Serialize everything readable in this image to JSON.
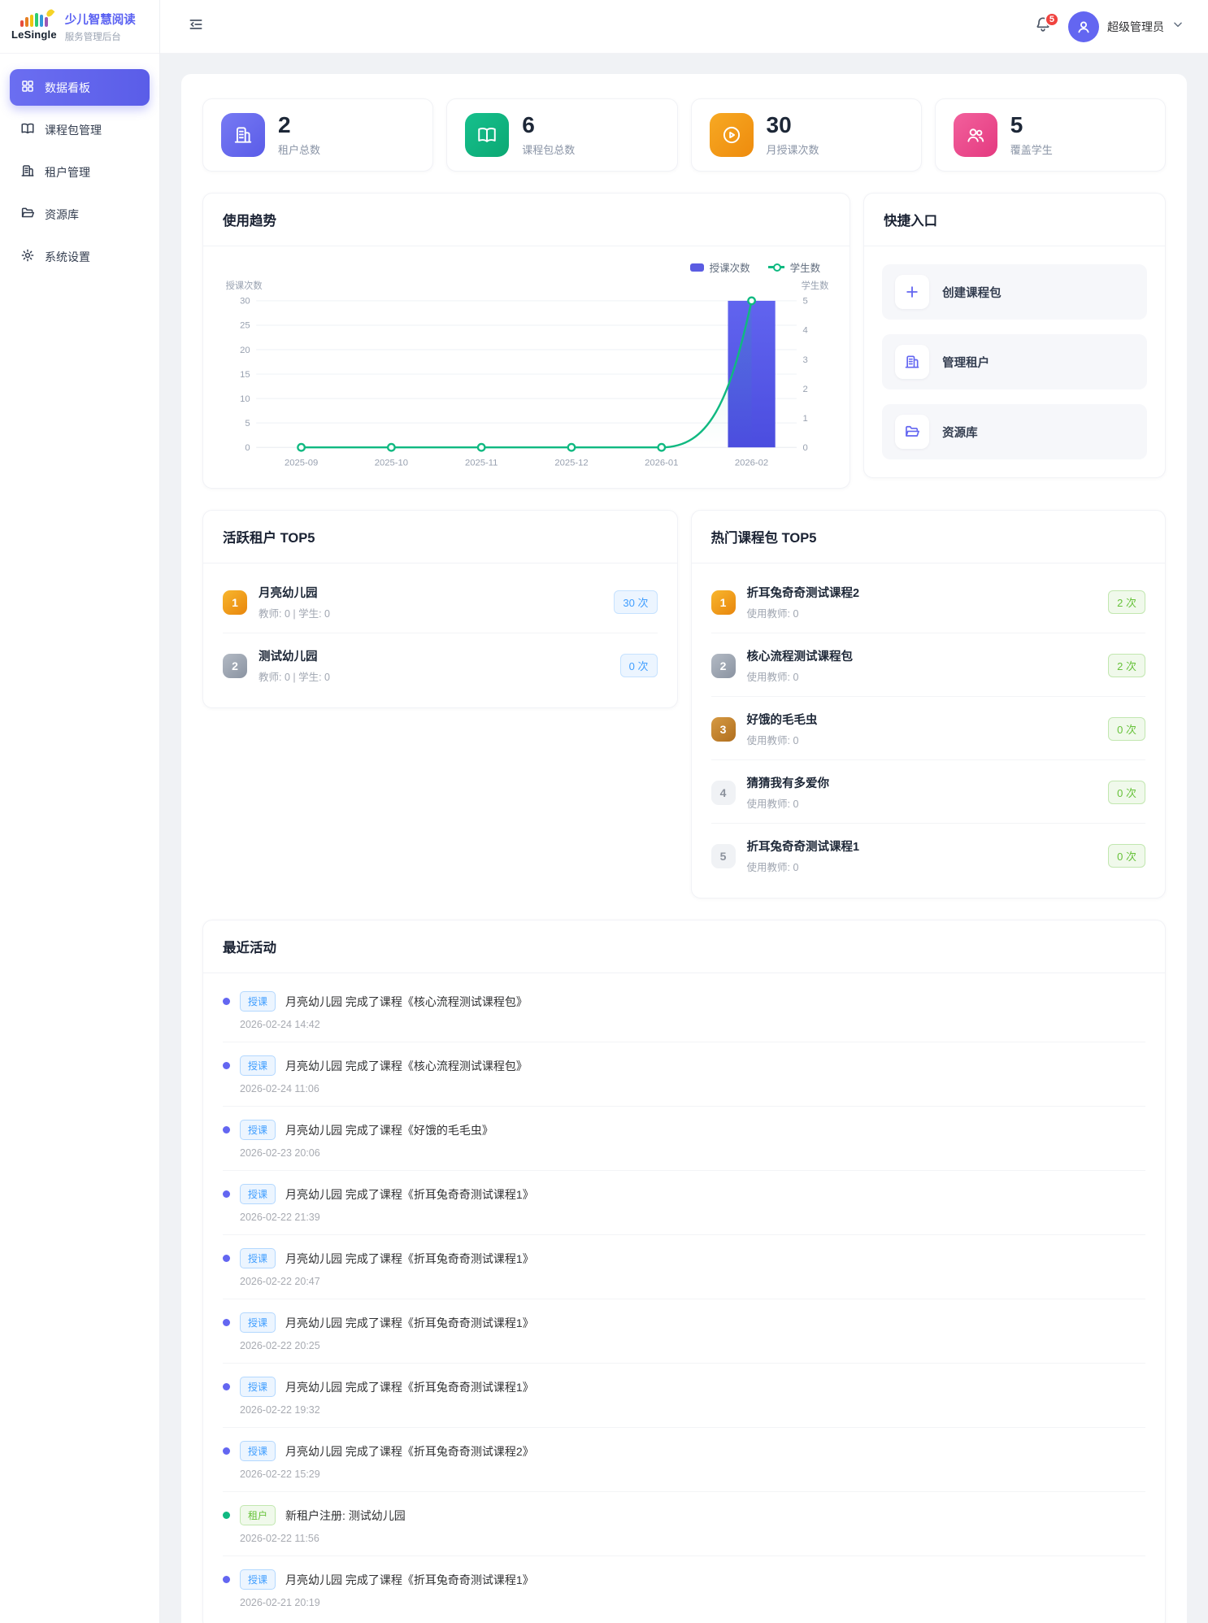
{
  "brand": {
    "logo_text": "LeSingle",
    "title": "少儿智慧阅读",
    "subtitle": "服务管理后台"
  },
  "header": {
    "notification_count": "5",
    "user_name": "超级管理员"
  },
  "accent_colors": {
    "primary": "#6366f1",
    "success": "#10b981",
    "warning": "#f59e0b",
    "pink": "#ec4899",
    "tag_blue": "#409eff",
    "tag_green": "#67c23a",
    "badge_red": "#f0433f"
  },
  "sidebar": {
    "items": [
      {
        "label": "数据看板",
        "icon": "dashboard-icon",
        "active": "true"
      },
      {
        "label": "课程包管理",
        "icon": "book-icon",
        "active": "false"
      },
      {
        "label": "租户管理",
        "icon": "building-icon",
        "active": "false"
      },
      {
        "label": "资源库",
        "icon": "folder-icon",
        "active": "false"
      },
      {
        "label": "系统设置",
        "icon": "gear-icon",
        "active": "false"
      }
    ]
  },
  "stats": [
    {
      "value": "2",
      "label": "租户总数",
      "kind": "tenants",
      "icon": "building-icon",
      "color": "#6366f1"
    },
    {
      "value": "6",
      "label": "课程包总数",
      "kind": "packages",
      "icon": "book-icon",
      "color": "#10b981"
    },
    {
      "value": "30",
      "label": "月授课次数",
      "kind": "sessions",
      "icon": "play-circle-icon",
      "color": "#f59e0b"
    },
    {
      "value": "5",
      "label": "覆盖学生",
      "kind": "students",
      "icon": "users-icon",
      "color": "#ec4899"
    }
  ],
  "trend": {
    "title": "使用趋势"
  },
  "chart_data": {
    "type": "bar+line",
    "categories": [
      "2025-09",
      "2025-10",
      "2025-11",
      "2025-12",
      "2026-01",
      "2026-02"
    ],
    "series": [
      {
        "name": "授课次数",
        "type": "bar",
        "values": [
          0,
          0,
          0,
          0,
          0,
          30
        ],
        "color": "#5b5ce2",
        "axis": "left"
      },
      {
        "name": "学生数",
        "type": "line",
        "values": [
          0,
          0,
          0,
          0,
          0,
          5
        ],
        "color": "#10b981",
        "axis": "right"
      }
    ],
    "left_axis": {
      "label": "授课次数",
      "min": 0,
      "max": 30,
      "step": 5
    },
    "right_axis": {
      "label": "学生数",
      "min": 0,
      "max": 5,
      "step": 1
    },
    "legend_position": "top-right",
    "grid": true
  },
  "quick_access": {
    "title": "快捷入口",
    "items": [
      {
        "label": "创建课程包",
        "icon": "plus-icon"
      },
      {
        "label": "管理租户",
        "icon": "building-icon"
      },
      {
        "label": "资源库",
        "icon": "folder-icon"
      }
    ]
  },
  "active_tenants": {
    "title": "活跃租户 TOP5",
    "items": [
      {
        "rank": "1",
        "name": "月亮幼儿园",
        "meta": "教师: 0 | 学生: 0",
        "count": "30 次"
      },
      {
        "rank": "2",
        "name": "测试幼儿园",
        "meta": "教师: 0 | 学生: 0",
        "count": "0 次"
      }
    ]
  },
  "hot": {
    "title": "热门课程包 TOP5",
    "items": [
      {
        "rank": "1",
        "name": "折耳兔奇奇测试课程2",
        "meta": "使用教师: 0",
        "count": "2 次"
      },
      {
        "rank": "2",
        "name": "核心流程测试课程包",
        "meta": "使用教师: 0",
        "count": "2 次"
      },
      {
        "rank": "3",
        "name": "好饿的毛毛虫",
        "meta": "使用教师: 0",
        "count": "0 次"
      },
      {
        "rank": "4",
        "name": "猜猜我有多爱你",
        "meta": "使用教师: 0",
        "count": "0 次"
      },
      {
        "rank": "5",
        "name": "折耳兔奇奇测试课程1",
        "meta": "使用教师: 0",
        "count": "0 次"
      }
    ]
  },
  "recent": {
    "title": "最近活动",
    "items": [
      {
        "type": "teach",
        "tag": "授课",
        "text": "月亮幼儿园 完成了课程《核心流程测试课程包》",
        "time": "2026-02-24 14:42"
      },
      {
        "type": "teach",
        "tag": "授课",
        "text": "月亮幼儿园 完成了课程《核心流程测试课程包》",
        "time": "2026-02-24 11:06"
      },
      {
        "type": "teach",
        "tag": "授课",
        "text": "月亮幼儿园 完成了课程《好饿的毛毛虫》",
        "time": "2026-02-23 20:06"
      },
      {
        "type": "teach",
        "tag": "授课",
        "text": "月亮幼儿园 完成了课程《折耳兔奇奇测试课程1》",
        "time": "2026-02-22 21:39"
      },
      {
        "type": "teach",
        "tag": "授课",
        "text": "月亮幼儿园 完成了课程《折耳兔奇奇测试课程1》",
        "time": "2026-02-22 20:47"
      },
      {
        "type": "teach",
        "tag": "授课",
        "text": "月亮幼儿园 完成了课程《折耳兔奇奇测试课程1》",
        "time": "2026-02-22 20:25"
      },
      {
        "type": "teach",
        "tag": "授课",
        "text": "月亮幼儿园 完成了课程《折耳兔奇奇测试课程1》",
        "time": "2026-02-22 19:32"
      },
      {
        "type": "teach",
        "tag": "授课",
        "text": "月亮幼儿园 完成了课程《折耳兔奇奇测试课程2》",
        "time": "2026-02-22 15:29"
      },
      {
        "type": "tenant",
        "tag": "租户",
        "text": "新租户注册: 测试幼儿园",
        "time": "2026-02-22 11:56"
      },
      {
        "type": "teach",
        "tag": "授课",
        "text": "月亮幼儿园 完成了课程《折耳兔奇奇测试课程1》",
        "time": "2026-02-21 20:19"
      }
    ]
  }
}
